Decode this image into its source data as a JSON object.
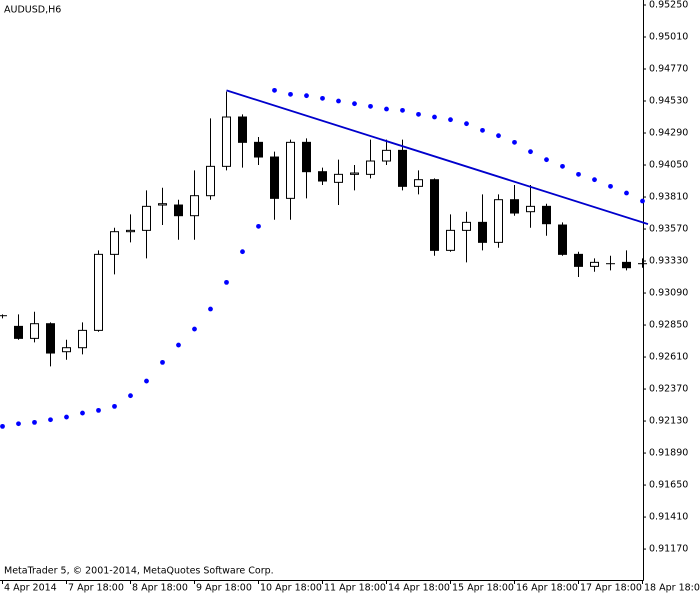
{
  "chart_data": {
    "type": "candlestick",
    "title": "AUDUSD,H6",
    "footer": "MetaTrader 5, © 2001-2014, MetaQuotes Software Corp.",
    "categories": [
      "4 Apr 2014",
      null,
      null,
      null,
      "7 Apr 18:00",
      null,
      null,
      null,
      "8 Apr 18:00",
      null,
      null,
      null,
      "9 Apr 18:00",
      null,
      null,
      null,
      "10 Apr 18:00",
      null,
      null,
      null,
      "11 Apr 18:00",
      null,
      null,
      null,
      "14 Apr 18:00",
      null,
      null,
      null,
      "15 Apr 18:00",
      null,
      null,
      null,
      "16 Apr 18:00",
      null,
      null,
      null,
      "17 Apr 18:00",
      null,
      null,
      null,
      "18 Apr 18:00"
    ],
    "open": [
      0.9292,
      0.9284,
      0.9275,
      0.9286,
      0.9265,
      0.9268,
      0.9281,
      0.9338,
      0.9355,
      0.9356,
      0.9375,
      0.9375,
      0.9367,
      0.9382,
      0.9404,
      0.9441,
      0.9422,
      0.9411,
      0.938,
      0.9422,
      0.94,
      0.9392,
      0.9398,
      0.9398,
      0.9408,
      0.9416,
      0.9389,
      0.9394,
      0.9341,
      0.9356,
      0.9362,
      0.9347,
      0.9379,
      0.937,
      0.9374,
      0.936,
      0.9338,
      0.9329,
      0.9331,
      0.9332,
      0.9331
    ],
    "high": [
      0.9293,
      0.9293,
      0.9295,
      0.9287,
      0.9274,
      0.9287,
      0.9341,
      0.9358,
      0.9368,
      0.9386,
      0.9388,
      0.9379,
      0.9401,
      0.944,
      0.946,
      0.9443,
      0.9426,
      0.9415,
      0.9424,
      0.9425,
      0.9403,
      0.9409,
      0.9405,
      0.9424,
      0.9424,
      0.9424,
      0.9401,
      0.9395,
      0.9368,
      0.937,
      0.9383,
      0.9383,
      0.939,
      0.939,
      0.9376,
      0.9362,
      0.934,
      0.9335,
      0.9337,
      0.9341,
      0.9335
    ],
    "low": [
      0.929,
      0.9274,
      0.9272,
      0.9254,
      0.9259,
      0.9263,
      0.928,
      0.9323,
      0.9347,
      0.9335,
      0.936,
      0.9349,
      0.9349,
      0.9379,
      0.9401,
      0.9403,
      0.9405,
      0.9364,
      0.9364,
      0.938,
      0.939,
      0.9375,
      0.9386,
      0.9395,
      0.9405,
      0.9386,
      0.9383,
      0.9337,
      0.934,
      0.9332,
      0.9341,
      0.9343,
      0.9367,
      0.9358,
      0.9352,
      0.9337,
      0.9321,
      0.9325,
      0.9326,
      0.9326,
      0.9328
    ],
    "close": [
      0.9292,
      0.9275,
      0.9286,
      0.9264,
      0.9268,
      0.9281,
      0.9338,
      0.9355,
      0.9356,
      0.9374,
      0.9376,
      0.9367,
      0.9382,
      0.9404,
      0.9441,
      0.9422,
      0.9411,
      0.938,
      0.9422,
      0.94,
      0.9393,
      0.9398,
      0.9399,
      0.9408,
      0.9416,
      0.9389,
      0.9394,
      0.9341,
      0.9356,
      0.9362,
      0.9347,
      0.9379,
      0.9369,
      0.9374,
      0.9361,
      0.9338,
      0.9329,
      0.9332,
      0.9331,
      0.9328,
      0.9331
    ],
    "up_color": "#ffffff",
    "down_color": "#000000",
    "sar": {
      "color": "#0000ff",
      "values": [
        0.9209,
        0.9211,
        0.9212,
        0.9214,
        0.9216,
        0.9219,
        0.9221,
        0.9224,
        0.9232,
        0.9243,
        0.9257,
        0.927,
        0.9282,
        0.9297,
        0.9317,
        0.934,
        0.9359,
        0.9461,
        0.9458,
        0.9457,
        0.9455,
        0.9453,
        0.9451,
        0.9449,
        0.9447,
        0.9446,
        0.9443,
        0.9441,
        0.9439,
        0.9436,
        0.9431,
        0.9427,
        0.9422,
        0.9415,
        0.9409,
        0.9404,
        0.9398,
        0.9394,
        0.9389,
        0.9384,
        0.9378
      ]
    },
    "trendline": {
      "color": "#0000cc",
      "values": [
        null,
        null,
        null,
        null,
        null,
        null,
        null,
        null,
        null,
        null,
        null,
        null,
        null,
        null,
        0.9461,
        null,
        null,
        null,
        null,
        null,
        null,
        null,
        null,
        null,
        null,
        null,
        null,
        null,
        null,
        null,
        null,
        null,
        null,
        null,
        null,
        null,
        null,
        null,
        null,
        null,
        0.9362
      ]
    },
    "ylim": [
      0.90938,
      0.952875
    ],
    "yticks": [
      {
        "value": 0.9525,
        "label": "0.95250"
      },
      {
        "value": 0.9501,
        "label": "0.95010"
      },
      {
        "value": 0.9477,
        "label": "0.94770"
      },
      {
        "value": 0.9453,
        "label": "0.94530"
      },
      {
        "value": 0.9429,
        "label": "0.94290"
      },
      {
        "value": 0.9405,
        "label": "0.94050"
      },
      {
        "value": 0.9381,
        "label": "0.93810"
      },
      {
        "value": 0.9357,
        "label": "0.93570"
      },
      {
        "value": 0.9333,
        "label": "0.93330"
      },
      {
        "value": 0.9309,
        "label": "0.93090"
      },
      {
        "value": 0.9285,
        "label": "0.92850"
      },
      {
        "value": 0.9261,
        "label": "0.92610"
      },
      {
        "value": 0.9237,
        "label": "0.92370"
      },
      {
        "value": 0.9213,
        "label": "0.92130"
      },
      {
        "value": 0.9189,
        "label": "0.91890"
      },
      {
        "value": 0.9165,
        "label": "0.91650"
      },
      {
        "value": 0.9141,
        "label": "0.91410"
      },
      {
        "value": 0.9117,
        "label": "0.91170"
      }
    ]
  }
}
